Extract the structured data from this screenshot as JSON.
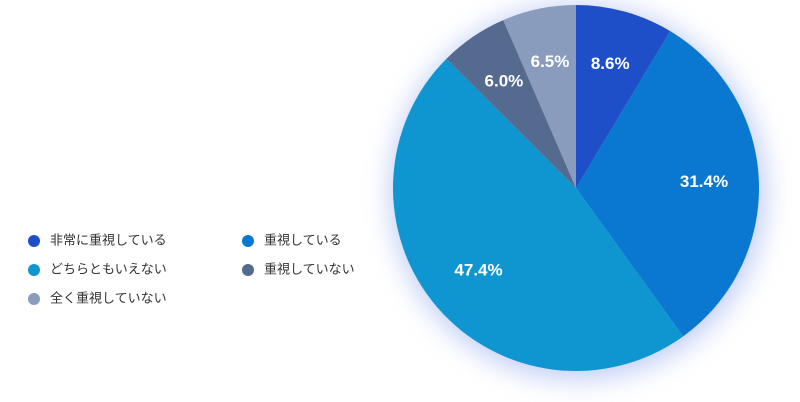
{
  "chart_data": {
    "type": "pie",
    "categories": [
      "非常に重視している",
      "重視している",
      "どちらともいえない",
      "重視していない",
      "全く重視していない"
    ],
    "values": [
      8.6,
      31.4,
      47.4,
      6.0,
      6.5
    ],
    "value_labels": [
      "8.6%",
      "31.4%",
      "47.4%",
      "6.0%",
      "6.5%"
    ],
    "colors": [
      "#1f4fc8",
      "#0a78d0",
      "#0f96d0",
      "#556a8f",
      "#8a9cbd"
    ],
    "start_angle": 0,
    "direction": "clockwise"
  }
}
